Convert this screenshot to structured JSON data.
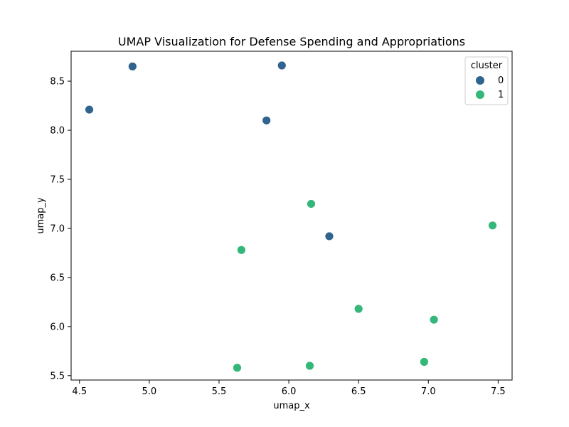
{
  "chart_data": {
    "type": "scatter",
    "title": "UMAP Visualization for Defense Spending and Appropriations",
    "xlabel": "umap_x",
    "ylabel": "umap_y",
    "xlim": [
      4.44,
      7.6
    ],
    "ylim": [
      5.455,
      8.805
    ],
    "xticks": [
      "4.5",
      "5.0",
      "5.5",
      "6.0",
      "6.5",
      "7.0",
      "7.5"
    ],
    "yticks": [
      "5.5",
      "6.0",
      "6.5",
      "7.0",
      "7.5",
      "8.0",
      "8.5"
    ],
    "grid": false,
    "legend": {
      "title": "cluster",
      "placement": "top-right"
    },
    "series": [
      {
        "name": "0",
        "color": "#30648e",
        "points": [
          {
            "x": 4.57,
            "y": 8.21
          },
          {
            "x": 4.88,
            "y": 8.65
          },
          {
            "x": 5.84,
            "y": 8.1
          },
          {
            "x": 5.95,
            "y": 8.66
          },
          {
            "x": 6.29,
            "y": 6.92
          }
        ]
      },
      {
        "name": "1",
        "color": "#35b779",
        "points": [
          {
            "x": 6.16,
            "y": 7.25
          },
          {
            "x": 7.46,
            "y": 7.03
          },
          {
            "x": 5.66,
            "y": 6.78
          },
          {
            "x": 6.5,
            "y": 6.18
          },
          {
            "x": 7.04,
            "y": 6.07
          },
          {
            "x": 6.97,
            "y": 5.64
          },
          {
            "x": 5.63,
            "y": 5.58
          },
          {
            "x": 6.15,
            "y": 5.6
          }
        ]
      }
    ]
  }
}
